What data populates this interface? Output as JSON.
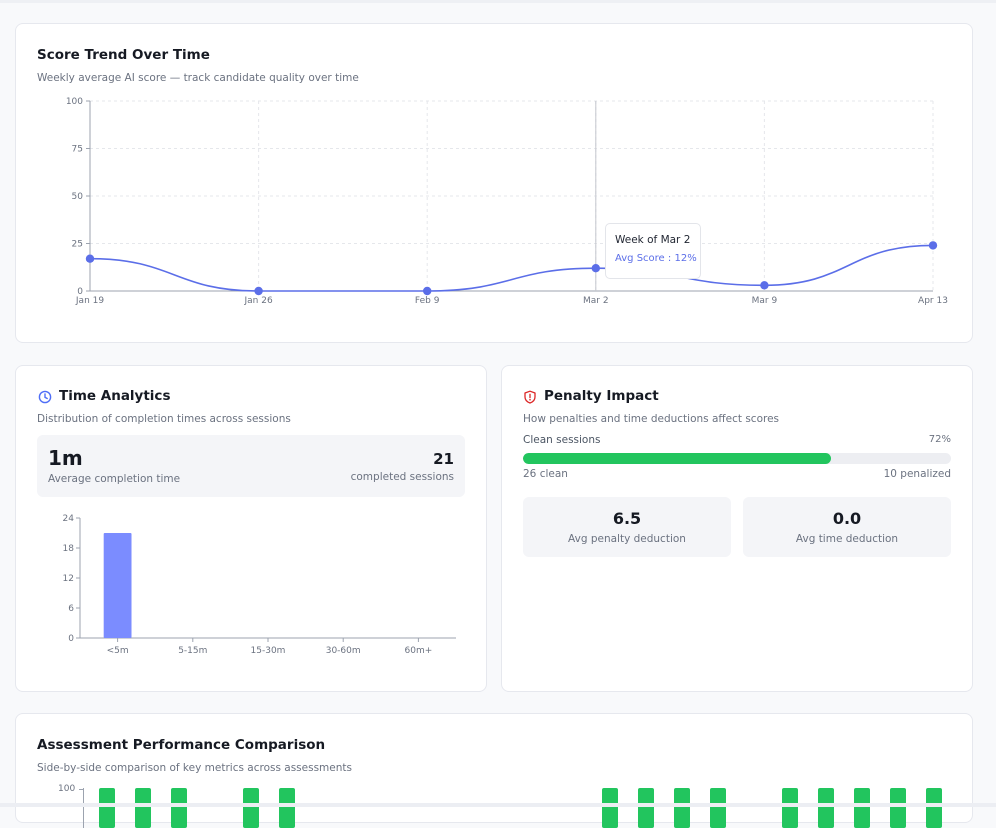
{
  "colors": {
    "line": "#5b6ee8",
    "bar": "#7b8cff",
    "green": "#22c55e",
    "track": "#edeef2",
    "penalty_icon": "#dc2626",
    "clock_icon": "#4f6ef7"
  },
  "trend": {
    "title": "Score Trend Over Time",
    "subtitle": "Weekly average AI score — track candidate quality over time",
    "tooltip": {
      "title": "Week of Mar 2",
      "series_label": "Avg Score",
      "value_text": "12%"
    }
  },
  "time_analytics": {
    "title": "Time Analytics",
    "subtitle": "Distribution of completion times across sessions",
    "avg_value": "1m",
    "avg_label": "Average completion time",
    "completed_value": "21",
    "completed_label": "completed sessions"
  },
  "penalty": {
    "title": "Penalty Impact",
    "subtitle": "How penalties and time deductions affect scores",
    "clean_label": "Clean sessions",
    "clean_pct_text": "72%",
    "clean_fraction": 0.72,
    "clean_count_text": "26 clean",
    "penalized_count_text": "10 penalized",
    "avg_penalty_value": "6.5",
    "avg_penalty_label": "Avg penalty deduction",
    "avg_time_value": "0.0",
    "avg_time_label": "Avg time deduction"
  },
  "comparison": {
    "title": "Assessment Performance Comparison",
    "subtitle": "Side-by-side comparison of key metrics across assessments",
    "ytick_top": "100"
  },
  "chart_data": [
    {
      "type": "line",
      "title": "Score Trend Over Time",
      "categories": [
        "Jan 19",
        "Jan 26",
        "Feb 9",
        "Mar 2",
        "Mar 9",
        "Apr 13"
      ],
      "series": [
        {
          "name": "Avg Score",
          "values": [
            17,
            0,
            0,
            12,
            3,
            24
          ]
        }
      ],
      "ylim": [
        0,
        100
      ],
      "yticks": [
        0,
        25,
        50,
        75,
        100
      ],
      "grid": true
    },
    {
      "type": "bar",
      "categories": [
        "<5m",
        "5-15m",
        "15-30m",
        "30-60m",
        "60m+"
      ],
      "values": [
        21,
        0,
        0,
        0,
        0
      ],
      "ylim": [
        0,
        24
      ],
      "yticks": [
        0,
        6,
        12,
        18,
        24
      ]
    }
  ]
}
